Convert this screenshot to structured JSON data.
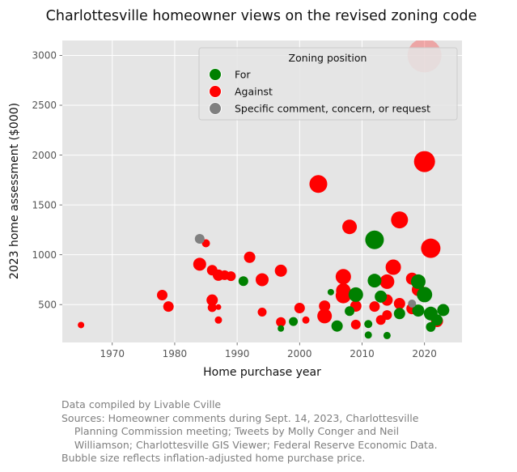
{
  "chart_data": {
    "type": "scatter",
    "title": "Charlottesville homeowner views on the revised zoning code",
    "xlabel": "Home purchase year",
    "ylabel": "2023 home assessment ($000)",
    "xlim": [
      1962,
      2026
    ],
    "ylim": [
      120,
      3150
    ],
    "xticks": [
      1970,
      1980,
      1990,
      2000,
      2010,
      2020
    ],
    "yticks": [
      500,
      1000,
      1500,
      2000,
      2500,
      3000
    ],
    "grid": true,
    "legend": {
      "title": "Zoning position",
      "placement": "top-right",
      "entries": [
        {
          "label": "For",
          "color": "#008000"
        },
        {
          "label": "Against",
          "color": "#ff0000"
        },
        {
          "label": "Specific comment, concern, or request",
          "color": "#808080"
        }
      ]
    },
    "size_note": "Bubble size reflects inflation-adjusted home purchase price.",
    "series": [
      {
        "name": "Against",
        "color": "#ff0000",
        "points": [
          {
            "x": 1965,
            "y": 295,
            "r": 4
          },
          {
            "x": 1978,
            "y": 595,
            "r": 6.5
          },
          {
            "x": 1979,
            "y": 480,
            "r": 6.5
          },
          {
            "x": 1984,
            "y": 905,
            "r": 8
          },
          {
            "x": 1985,
            "y": 1115,
            "r": 5
          },
          {
            "x": 1986,
            "y": 845,
            "r": 6.5
          },
          {
            "x": 1986,
            "y": 545,
            "r": 7
          },
          {
            "x": 1986,
            "y": 470,
            "r": 5.5
          },
          {
            "x": 1987,
            "y": 795,
            "r": 7
          },
          {
            "x": 1987,
            "y": 475,
            "r": 3.5
          },
          {
            "x": 1987,
            "y": 345,
            "r": 4.5
          },
          {
            "x": 1988,
            "y": 795,
            "r": 6
          },
          {
            "x": 1989,
            "y": 785,
            "r": 6
          },
          {
            "x": 1992,
            "y": 975,
            "r": 7
          },
          {
            "x": 1994,
            "y": 750,
            "r": 8
          },
          {
            "x": 1994,
            "y": 425,
            "r": 5.5
          },
          {
            "x": 1997,
            "y": 840,
            "r": 7.5
          },
          {
            "x": 1997,
            "y": 325,
            "r": 6
          },
          {
            "x": 2000,
            "y": 465,
            "r": 6.5
          },
          {
            "x": 2001,
            "y": 345,
            "r": 4.5
          },
          {
            "x": 2003,
            "y": 1710,
            "r": 11
          },
          {
            "x": 2004,
            "y": 485,
            "r": 7
          },
          {
            "x": 2004,
            "y": 385,
            "r": 9
          },
          {
            "x": 2007,
            "y": 780,
            "r": 9.5
          },
          {
            "x": 2007,
            "y": 640,
            "r": 9
          },
          {
            "x": 2007,
            "y": 590,
            "r": 9.5
          },
          {
            "x": 2008,
            "y": 1280,
            "r": 9
          },
          {
            "x": 2009,
            "y": 485,
            "r": 7
          },
          {
            "x": 2009,
            "y": 300,
            "r": 6
          },
          {
            "x": 2012,
            "y": 480,
            "r": 6.5
          },
          {
            "x": 2013,
            "y": 345,
            "r": 6
          },
          {
            "x": 2014,
            "y": 730,
            "r": 9
          },
          {
            "x": 2014,
            "y": 545,
            "r": 7
          },
          {
            "x": 2014,
            "y": 395,
            "r": 6
          },
          {
            "x": 2015,
            "y": 875,
            "r": 9.5
          },
          {
            "x": 2016,
            "y": 1350,
            "r": 10.5
          },
          {
            "x": 2016,
            "y": 510,
            "r": 7
          },
          {
            "x": 2018,
            "y": 760,
            "r": 7.5
          },
          {
            "x": 2018,
            "y": 460,
            "r": 7
          },
          {
            "x": 2019,
            "y": 650,
            "r": 8
          },
          {
            "x": 2020,
            "y": 3000,
            "r": 21
          },
          {
            "x": 2020,
            "y": 1935,
            "r": 13
          },
          {
            "x": 2021,
            "y": 1065,
            "r": 12
          },
          {
            "x": 2022,
            "y": 335,
            "r": 7.5
          }
        ]
      },
      {
        "name": "For",
        "color": "#008000",
        "points": [
          {
            "x": 1991,
            "y": 735,
            "r": 6
          },
          {
            "x": 1997,
            "y": 260,
            "r": 4
          },
          {
            "x": 1999,
            "y": 330,
            "r": 5.5
          },
          {
            "x": 2005,
            "y": 625,
            "r": 4
          },
          {
            "x": 2006,
            "y": 285,
            "r": 7
          },
          {
            "x": 2008,
            "y": 435,
            "r": 6
          },
          {
            "x": 2009,
            "y": 600,
            "r": 9
          },
          {
            "x": 2011,
            "y": 305,
            "r": 5
          },
          {
            "x": 2011,
            "y": 195,
            "r": 4.5
          },
          {
            "x": 2012,
            "y": 1150,
            "r": 11.5
          },
          {
            "x": 2012,
            "y": 740,
            "r": 8.5
          },
          {
            "x": 2013,
            "y": 580,
            "r": 7.5
          },
          {
            "x": 2014,
            "y": 190,
            "r": 4.5
          },
          {
            "x": 2016,
            "y": 410,
            "r": 7
          },
          {
            "x": 2019,
            "y": 730,
            "r": 9
          },
          {
            "x": 2019,
            "y": 440,
            "r": 7.5
          },
          {
            "x": 2020,
            "y": 600,
            "r": 9.5
          },
          {
            "x": 2021,
            "y": 410,
            "r": 8.5
          },
          {
            "x": 2021,
            "y": 275,
            "r": 6
          },
          {
            "x": 2022,
            "y": 345,
            "r": 7
          },
          {
            "x": 2023,
            "y": 445,
            "r": 7.5
          }
        ]
      },
      {
        "name": "Specific comment, concern, or request",
        "color": "#808080",
        "points": [
          {
            "x": 1984,
            "y": 1160,
            "r": 6
          },
          {
            "x": 2018,
            "y": 510,
            "r": 5
          }
        ]
      }
    ]
  },
  "footnote": [
    "Data compiled by Livable Cville",
    "Sources: Homeowner comments during Sept. 14, 2023, Charlottesville",
    "    Planning Commission meeting; Tweets by Molly Conger and Neil",
    "    Williamson; Charlottesville GIS Viewer; Federal Reserve Economic Data.",
    "Bubble size reflects inflation-adjusted home purchase price."
  ]
}
